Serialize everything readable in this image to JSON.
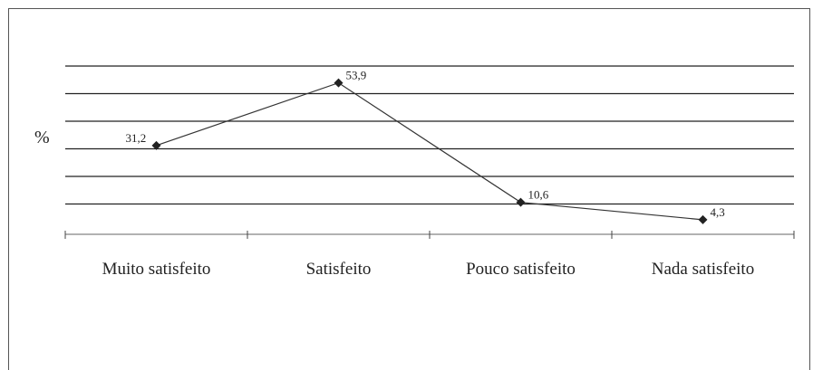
{
  "chart_data": {
    "type": "line",
    "categories": [
      "Muito satisfeito",
      "Satisfeito",
      "Pouco satisfeito",
      "Nada satisfeito"
    ],
    "values": [
      31.2,
      53.9,
      10.6,
      4.3
    ],
    "data_labels": [
      "31,2",
      "53,9",
      "10,6",
      "4,3"
    ],
    "ylabel": "%",
    "ylim": [
      0,
      60
    ],
    "grid": true,
    "legend": "none",
    "colors": {
      "line": "#333333",
      "marker": "#222222",
      "grid": "#222222",
      "frame": "#555555"
    }
  }
}
